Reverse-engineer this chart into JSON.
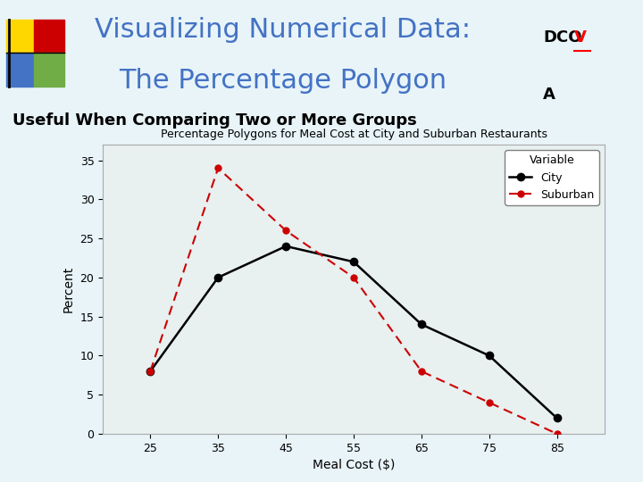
{
  "title_line1": "Visualizing Numerical Data:",
  "title_line2": "The Percentage Polygon",
  "subtitle": "Useful When Comparing Two or More Groups",
  "chart_title": "Percentage Polygons for Meal Cost at City and Suburban Restaurants",
  "xlabel": "Meal Cost ($)",
  "ylabel": "Percent",
  "x_values": [
    25,
    35,
    45,
    55,
    65,
    75,
    85
  ],
  "city_values": [
    8,
    20,
    24,
    22,
    14,
    10,
    2
  ],
  "suburban_values": [
    8,
    34,
    26,
    20,
    8,
    4,
    0
  ],
  "xlim": [
    18,
    92
  ],
  "ylim": [
    0,
    37
  ],
  "yticks": [
    0,
    5,
    10,
    15,
    20,
    25,
    30,
    35
  ],
  "xticks": [
    25,
    35,
    45,
    55,
    65,
    75,
    85
  ],
  "city_color": "#000000",
  "suburban_color": "#cc0000",
  "bg_color": "#e8f4f8",
  "plot_bg_color": "#e8f0f0",
  "title_color": "#4472c4",
  "subtitle_color": "#000000",
  "legend_title": "Variable",
  "legend_city": "City",
  "legend_suburban": "Suburban",
  "sq_red": "#cc0000",
  "sq_blue": "#4472c4",
  "sq_green": "#70ad47",
  "sq_yellow": "#ffd700"
}
